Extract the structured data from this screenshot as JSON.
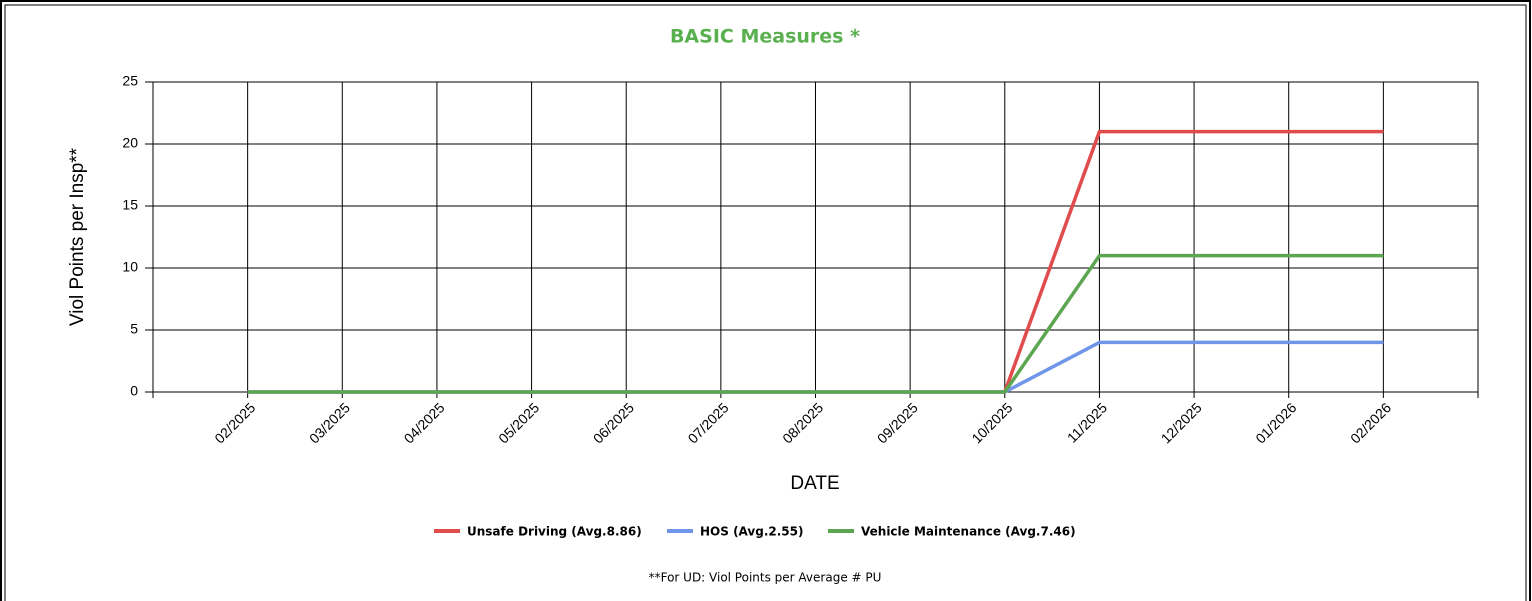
{
  "chart_data": {
    "type": "line",
    "title": "BASIC Measures *",
    "xlabel": "DATE",
    "ylabel": "Viol Points per Insp**",
    "categories": [
      "02/2025",
      "03/2025",
      "04/2025",
      "05/2025",
      "06/2025",
      "07/2025",
      "08/2025",
      "09/2025",
      "10/2025",
      "11/2025",
      "12/2025",
      "01/2026",
      "02/2026"
    ],
    "series": [
      {
        "name": "Unsafe Driving (Avg.8.86)",
        "color": "#e04b4b",
        "values": [
          0,
          0,
          0,
          0,
          0,
          0,
          0,
          0,
          0,
          21,
          21,
          21,
          21
        ]
      },
      {
        "name": "HOS (Avg.2.55)",
        "color": "#6f96e8",
        "values": [
          0,
          0,
          0,
          0,
          0,
          0,
          0,
          0,
          0,
          4,
          4,
          4,
          4
        ]
      },
      {
        "name": "Vehicle Maintenance (Avg.7.46)",
        "color": "#5da651",
        "values": [
          0,
          0,
          0,
          0,
          0,
          0,
          0,
          0,
          0,
          11,
          11,
          11,
          11
        ]
      }
    ],
    "ylim": [
      0,
      25
    ],
    "yticks": [
      0,
      5,
      10,
      15,
      20,
      25
    ],
    "grid": true,
    "legend": "bottom",
    "footnote": "**For UD: Viol Points per Average # PU"
  }
}
